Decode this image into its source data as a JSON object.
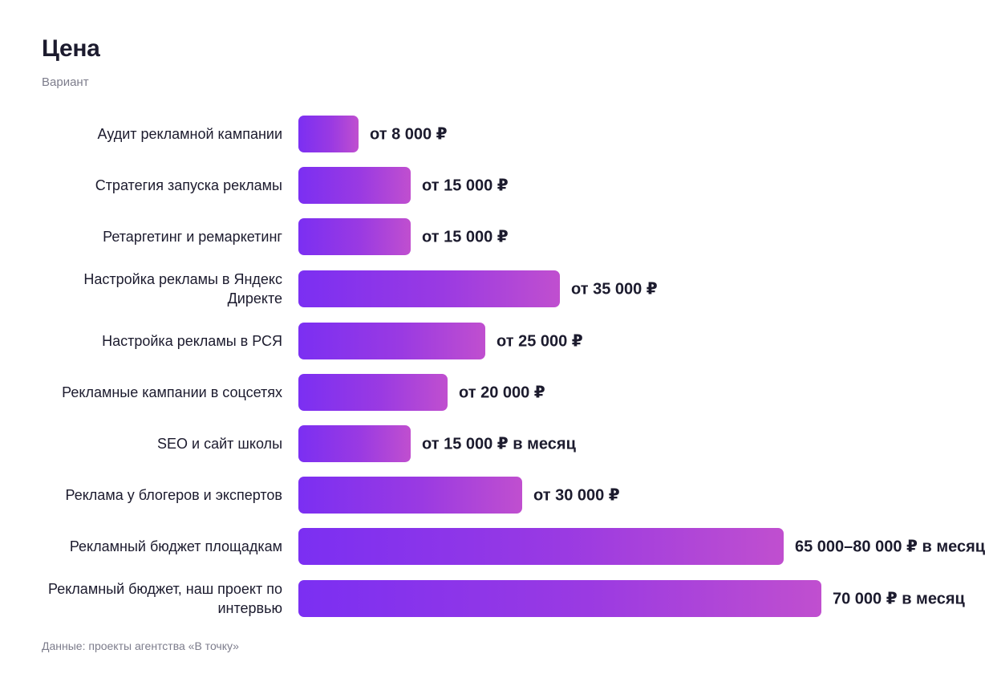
{
  "chart_data": {
    "type": "bar",
    "orientation": "horizontal",
    "title": "Цена",
    "subtitle": "Вариант",
    "source": "Данные: проекты агентства «В точку»",
    "categories": [
      "Аудит рекламной кампании",
      "Стратегия запуска рекламы",
      "Ретаргетинг и ремаркетинг",
      "Настройка рекламы в Яндекс Директе",
      "Настройка рекламы в РСЯ",
      "Рекламные кампании в соцсетях",
      "SEO и сайт школы",
      "Реклама у блогеров и экспертов",
      "Рекламный бюджет площадкам",
      "Рекламный бюджет, наш проект по интервью"
    ],
    "values": [
      8000,
      15000,
      15000,
      35000,
      25000,
      20000,
      15000,
      30000,
      65000,
      70000
    ],
    "value_labels": [
      "от 8 000 ₽",
      "от 15 000 ₽",
      "от 15 000 ₽",
      "от 35 000 ₽",
      "от 25 000 ₽",
      "от 20 000 ₽",
      "от 15 000 ₽ в месяц",
      "от 30 000 ₽",
      "65 000–80 000 ₽ в месяц",
      "70 000 ₽ в месяц"
    ],
    "xlim": [
      0,
      70000
    ],
    "grid": false,
    "legend": "none",
    "colors": {
      "bar_start": "#7b2ff2",
      "bar_end": "#c04fcf",
      "text": "#1c1b2e",
      "muted": "#7d7d8c"
    }
  }
}
